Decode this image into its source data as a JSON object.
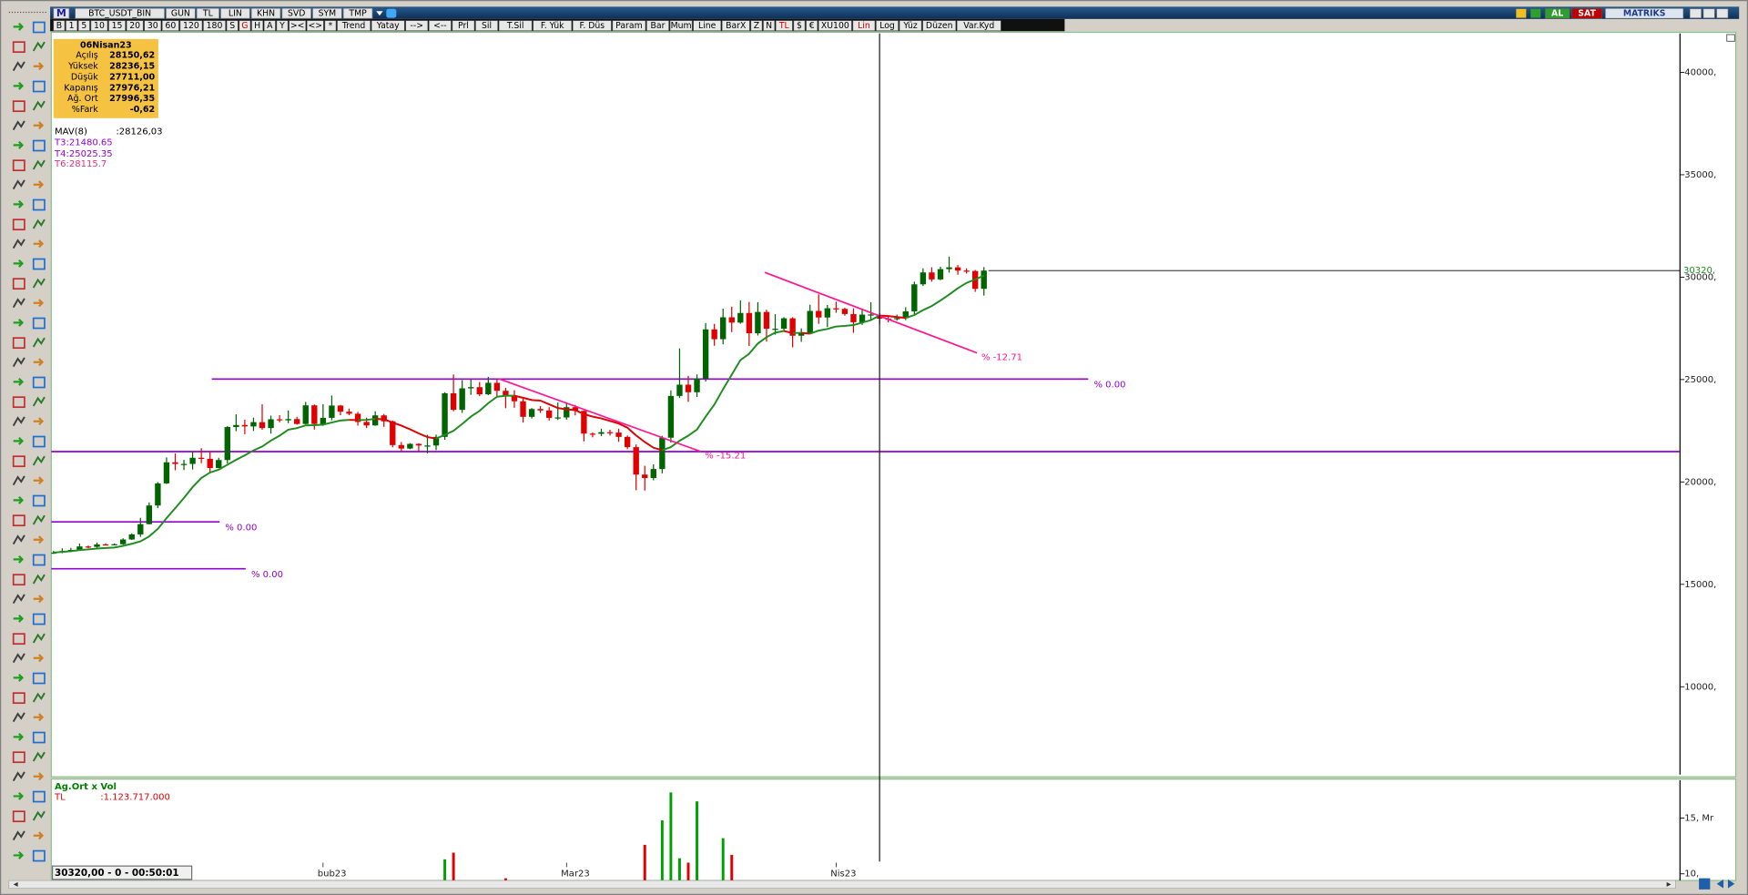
{
  "toolbar": {
    "row1": [
      "M",
      "BTC_USDT_BIN",
      "GUN",
      "TL",
      "LIN",
      "KHN",
      "SVD",
      "SYM",
      "TMP"
    ],
    "right": [
      "AL",
      "SAT",
      "MATRIKS"
    ],
    "row2": [
      "B",
      "1",
      "5",
      "10",
      "15",
      "20",
      "30",
      "60",
      "120",
      "180",
      "S",
      {
        "label": "G",
        "color": "#d00000"
      },
      "H",
      "A",
      "Y",
      "><",
      "<>",
      "*",
      "Trend",
      "Yatay",
      "-->",
      "<--",
      "Prl",
      "Sil",
      "T.Sil",
      "F. Yük",
      "F. Düs",
      "Param",
      "Bar",
      "Mum",
      "Line",
      "BarX",
      "Z",
      "N",
      {
        "label": "TL",
        "color": "#d00000"
      },
      "$",
      "€",
      "XU100",
      {
        "label": "Lin",
        "color": "#d00000"
      },
      "Log",
      "Yüz",
      "Düzen",
      "Var.Kyd"
    ]
  },
  "info_box": {
    "date": "06Nisan23",
    "rows": [
      [
        "Açılış",
        "28150,62"
      ],
      [
        "Yüksek",
        "28236,15"
      ],
      [
        "Düşük",
        "27711,00"
      ],
      [
        "Kapanış",
        "27976,21"
      ],
      [
        "Ağ. Ort",
        "27996,35"
      ],
      [
        "%Fark",
        "-0,62"
      ]
    ]
  },
  "overlay_text": {
    "mav_name": "MAV(8)",
    "mav_value": ":28126,03",
    "t3": "T3:21480.65",
    "t4": "T4:25025.35",
    "t6": "T6:28115.7"
  },
  "status_bar": {
    "quote": "30320,00 - 0 - 00:50:01"
  },
  "chart_data": [
    {
      "type": "candlestick",
      "ylim": [
        5600,
        41900
      ],
      "yticks": [
        {
          "value": 40000,
          "label": "40000,"
        },
        {
          "value": 35000,
          "label": "35000,"
        },
        {
          "value": 30000,
          "label": "30000,"
        },
        {
          "value": 25000,
          "label": "25000,"
        },
        {
          "value": 20000,
          "label": "20000,"
        },
        {
          "value": 15000,
          "label": "15000,"
        },
        {
          "value": 10000,
          "label": "10000,"
        }
      ],
      "grid": false,
      "colors": {
        "up": "#006400",
        "down": "#e00000",
        "ma_up": "#1e8c1e",
        "ma_down": "#e00000",
        "hline": "#9400d3",
        "trend": "#ff1493",
        "last": "#1e8c1e"
      },
      "candles": [
        [
          16540,
          16630,
          16490,
          16550
        ],
        [
          16550,
          16760,
          16520,
          16620
        ],
        [
          16620,
          16780,
          16600,
          16680
        ],
        [
          16680,
          16990,
          16650,
          16850
        ],
        [
          16850,
          16890,
          16760,
          16830
        ],
        [
          16830,
          17040,
          16790,
          16950
        ],
        [
          16950,
          17010,
          16900,
          16940
        ],
        [
          16940,
          17000,
          16910,
          16960
        ],
        [
          16960,
          17250,
          16930,
          17190
        ],
        [
          17190,
          17490,
          17170,
          17440
        ],
        [
          17440,
          18250,
          17320,
          17940
        ],
        [
          17940,
          19000,
          17920,
          18850
        ],
        [
          18850,
          19990,
          18720,
          19930
        ],
        [
          19930,
          21200,
          19900,
          20960
        ],
        [
          20960,
          21390,
          20570,
          20880
        ],
        [
          20880,
          21080,
          20580,
          20880
        ],
        [
          20880,
          21470,
          20610,
          21180
        ],
        [
          21180,
          21650,
          20920,
          21130
        ],
        [
          21130,
          21500,
          20430,
          20680
        ],
        [
          20680,
          21180,
          20670,
          21070
        ],
        [
          21070,
          22730,
          20900,
          22680
        ],
        [
          22680,
          23300,
          22480,
          22780
        ],
        [
          22780,
          23040,
          22330,
          22710
        ],
        [
          22710,
          23140,
          22490,
          22920
        ],
        [
          22920,
          23790,
          22550,
          22630
        ],
        [
          22630,
          23240,
          22360,
          23060
        ],
        [
          23060,
          23260,
          22910,
          23010
        ],
        [
          23010,
          23490,
          22870,
          23070
        ],
        [
          23070,
          23180,
          22800,
          22830
        ],
        [
          22830,
          23910,
          22810,
          23740
        ],
        [
          23740,
          23780,
          22560,
          22830
        ],
        [
          22830,
          23800,
          22740,
          23130
        ],
        [
          23130,
          24220,
          23010,
          23730
        ],
        [
          23730,
          23760,
          23260,
          23430
        ],
        [
          23430,
          23580,
          23260,
          23330
        ],
        [
          23330,
          23420,
          22750,
          22930
        ],
        [
          22930,
          23140,
          22630,
          22760
        ],
        [
          22760,
          23450,
          22740,
          23250
        ],
        [
          23250,
          23320,
          22690,
          22960
        ],
        [
          22960,
          23000,
          21690,
          21800
        ],
        [
          21800,
          21950,
          21480,
          21630
        ],
        [
          21630,
          21900,
          21600,
          21860
        ],
        [
          21860,
          21890,
          21470,
          21780
        ],
        [
          21780,
          22300,
          21400,
          21780
        ],
        [
          21780,
          22310,
          21550,
          22200
        ],
        [
          22200,
          24380,
          22060,
          24330
        ],
        [
          24330,
          25250,
          23450,
          23520
        ],
        [
          23520,
          24970,
          23370,
          24570
        ],
        [
          24570,
          25000,
          24250,
          24630
        ],
        [
          24630,
          24880,
          24190,
          24280
        ],
        [
          24280,
          25130,
          24240,
          24840
        ],
        [
          24840,
          25020,
          24160,
          24450
        ],
        [
          24450,
          24600,
          23600,
          24190
        ],
        [
          24190,
          24480,
          23620,
          23940
        ],
        [
          23940,
          24120,
          22900,
          23180
        ],
        [
          23180,
          23610,
          23100,
          23560
        ],
        [
          23560,
          23700,
          23370,
          23490
        ],
        [
          23490,
          23650,
          22990,
          23130
        ],
        [
          23130,
          23880,
          23030,
          23150
        ],
        [
          23150,
          23890,
          23040,
          23650
        ],
        [
          23650,
          23760,
          23250,
          23470
        ],
        [
          23470,
          23480,
          21980,
          22360
        ],
        [
          22360,
          22420,
          22180,
          22350
        ],
        [
          22350,
          22600,
          22240,
          22430
        ],
        [
          22430,
          22550,
          22270,
          22410
        ],
        [
          22410,
          22600,
          21960,
          22200
        ],
        [
          22200,
          22270,
          21600,
          21700
        ],
        [
          21700,
          21830,
          19600,
          20360
        ],
        [
          20360,
          20790,
          19580,
          20190
        ],
        [
          20190,
          20860,
          20080,
          20630
        ],
        [
          20630,
          22250,
          20420,
          22160
        ],
        [
          22160,
          24470,
          21920,
          24200
        ],
        [
          24200,
          26520,
          24100,
          24750
        ],
        [
          24750,
          25180,
          23910,
          24380
        ],
        [
          24380,
          25250,
          24150,
          25050
        ],
        [
          25050,
          27760,
          24900,
          27450
        ],
        [
          27450,
          27720,
          26650,
          26970
        ],
        [
          26970,
          28460,
          26720,
          28040
        ],
        [
          28040,
          28560,
          27320,
          27780
        ],
        [
          27780,
          28860,
          27730,
          28250
        ],
        [
          28250,
          28790,
          26640,
          27260
        ],
        [
          27260,
          28780,
          27150,
          28300
        ],
        [
          28300,
          28410,
          26850,
          27480
        ],
        [
          27480,
          28190,
          27190,
          27480
        ],
        [
          27480,
          28040,
          27380,
          27990
        ],
        [
          27990,
          28040,
          26570,
          27140
        ],
        [
          27140,
          27500,
          26840,
          27270
        ],
        [
          27270,
          28650,
          27240,
          28350
        ],
        [
          28350,
          29160,
          27720,
          28030
        ],
        [
          28030,
          28640,
          27560,
          28480
        ],
        [
          28480,
          28800,
          28260,
          28450
        ],
        [
          28450,
          28500,
          28120,
          28200
        ],
        [
          28200,
          28480,
          27280,
          27800
        ],
        [
          27800,
          28440,
          27670,
          28170
        ],
        [
          28170,
          28770,
          27880,
          28180
        ],
        [
          28150.62,
          28236.15,
          27711,
          27976.21
        ],
        [
          27976.21,
          28120,
          27790,
          27950
        ],
        [
          27950,
          28170,
          27880,
          28000
        ],
        [
          28000,
          28530,
          27900,
          28330
        ],
        [
          28330,
          29780,
          28190,
          29650
        ],
        [
          29650,
          30430,
          29570,
          30230
        ],
        [
          30230,
          30480,
          29780,
          29890
        ],
        [
          29890,
          30510,
          29850,
          30390
        ],
        [
          30390,
          31000,
          30220,
          30480
        ],
        [
          30480,
          30590,
          30120,
          30320
        ],
        [
          30320,
          30430,
          30180,
          30300
        ],
        [
          30300,
          30350,
          29280,
          29430
        ],
        [
          29430,
          30490,
          29100,
          30320
        ]
      ],
      "ma": [
        16550,
        16585,
        16617,
        16675,
        16706,
        16747,
        16774,
        16797,
        16877,
        16980,
        17100,
        17340,
        17710,
        18230,
        18720,
        19220,
        19750,
        20190,
        20460,
        20600,
        20840,
        21080,
        21300,
        21540,
        21730,
        22020,
        22260,
        22550,
        22630,
        22760,
        22770,
        22800,
        22900,
        23000,
        23030,
        23020,
        23030,
        23080,
        23060,
        22900,
        22750,
        22570,
        22370,
        22190,
        22120,
        22300,
        22500,
        22830,
        23190,
        23470,
        23850,
        24160,
        24210,
        24210,
        24110,
        24000,
        23970,
        23790,
        23610,
        23540,
        23510,
        23310,
        23190,
        23100,
        22980,
        22850,
        22650,
        22270,
        21950,
        21670,
        21550,
        21700,
        22010,
        22260,
        22560,
        23190,
        23780,
        24530,
        25240,
        25950,
        26260,
        26760,
        27070,
        27290,
        27370,
        27270,
        27280,
        27240,
        27390,
        27470,
        27590,
        27620,
        27660,
        27780,
        27900,
        28126.03,
        28100,
        28050,
        28010,
        28150,
        28390,
        28590,
        28860,
        29150,
        29460,
        29720,
        29890,
        30080
      ],
      "hlines": [
        {
          "value": 25025.35,
          "x": [
            18.2,
            119
          ],
          "label": "% 0.00"
        },
        {
          "value": 21480.65,
          "x": [
            -0.3,
            187
          ]
        },
        {
          "value": 18050,
          "x": [
            -0.3,
            19.1
          ],
          "label": "% 0.00"
        },
        {
          "value": 15760,
          "x": [
            -0.3,
            22.1
          ],
          "label": "% 0.00"
        }
      ],
      "trendlines": [
        {
          "x": [
            51.2,
            74.4
          ],
          "y": [
            25040,
            21490
          ],
          "label": "% -15.21"
        },
        {
          "x": [
            81.8,
            106.2
          ],
          "y": [
            30230,
            26300
          ],
          "label": "% -12.71"
        }
      ],
      "last_price": {
        "value": 30320,
        "label": "30320,"
      },
      "cursor": 95
    },
    {
      "type": "bar",
      "title": "Ag.Ort x Vol",
      "unit": "TL",
      "value_text": ":1.123.717.000",
      "ylim": [
        9.4,
        18.4
      ],
      "yticks": [
        {
          "value": 15,
          "label": "15, Mr"
        },
        {
          "value": 10,
          "label": "10,"
        }
      ],
      "colors": {
        "up": "#00a000",
        "down": "#e00000"
      },
      "categories": [
        null,
        null,
        null,
        null,
        null,
        null,
        null,
        null,
        null,
        null,
        null,
        null,
        null,
        null,
        null,
        null,
        null,
        null,
        null,
        null,
        null,
        null,
        null,
        null,
        null,
        null,
        null,
        null,
        null,
        null,
        null,
        "bub23",
        null,
        null,
        null,
        null,
        null,
        null,
        null,
        null,
        null,
        null,
        null,
        null,
        null,
        null,
        null,
        null,
        null,
        null,
        null,
        null,
        null,
        null,
        null,
        null,
        null,
        null,
        null,
        "Mar23",
        null,
        null,
        null,
        null,
        null,
        null,
        null,
        null,
        null,
        null,
        null,
        null,
        null,
        null,
        null,
        null,
        null,
        null,
        null,
        null,
        null,
        null,
        null,
        null,
        null,
        null,
        null,
        null,
        null,
        null,
        "Nis23",
        null,
        null,
        null,
        null,
        null,
        null,
        null,
        null,
        null,
        null,
        null,
        null,
        null,
        null,
        null,
        null,
        null
      ],
      "values": [
        null,
        null,
        null,
        null,
        null,
        null,
        null,
        null,
        null,
        null,
        null,
        null,
        null,
        null,
        null,
        null,
        null,
        null,
        null,
        null,
        null,
        null,
        null,
        null,
        null,
        null,
        null,
        null,
        null,
        null,
        null,
        null,
        null,
        null,
        null,
        null,
        null,
        null,
        null,
        null,
        null,
        null,
        null,
        null,
        null,
        11.3,
        11.9,
        null,
        null,
        null,
        null,
        null,
        9.6,
        null,
        null,
        null,
        null,
        null,
        null,
        null,
        null,
        null,
        null,
        null,
        null,
        null,
        null,
        null,
        12.6,
        null,
        14.8,
        17.3,
        11.4,
        11.0,
        16.5,
        null,
        null,
        13.2,
        11.7,
        null,
        null,
        null,
        null,
        null,
        null,
        null,
        null,
        null,
        null,
        null,
        null,
        null,
        null,
        null,
        null,
        null,
        null,
        null,
        null,
        null,
        null,
        null,
        null,
        null,
        null,
        null,
        null,
        null
      ]
    }
  ]
}
